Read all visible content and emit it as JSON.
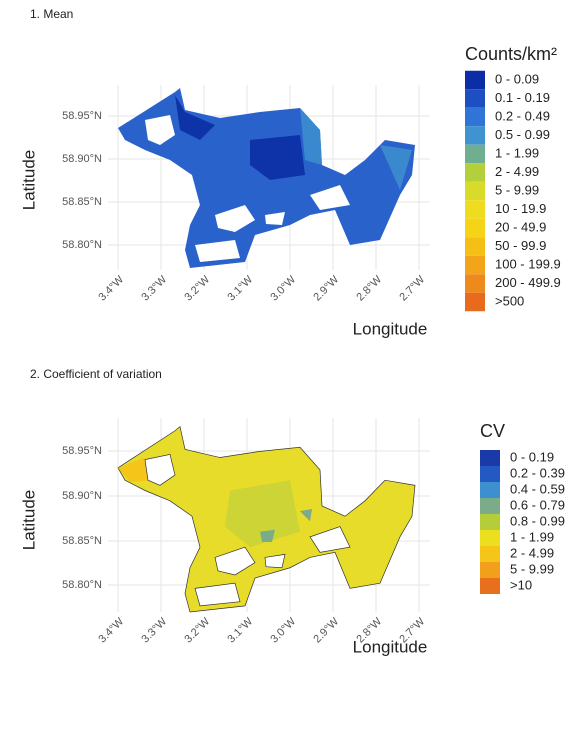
{
  "panels": [
    {
      "title": "1. Mean",
      "y_label": "Latitude",
      "x_label": "Longitude",
      "y_ticks": [
        "58.95°N",
        "58.90°N",
        "58.85°N",
        "58.80°N"
      ],
      "x_ticks": [
        "3.4°W",
        "3.3°W",
        "3.2°W",
        "3.1°W",
        "3.0°W",
        "2.9°W",
        "2.8°W",
        "2.7°W"
      ],
      "legend": {
        "title": "Counts/km²",
        "items": [
          {
            "label": "0 - 0.09",
            "color": "#0b2ea6"
          },
          {
            "label": "0.1 - 0.19",
            "color": "#1d4fc2"
          },
          {
            "label": "0.2 - 0.49",
            "color": "#2f74d6"
          },
          {
            "label": "0.5 - 0.99",
            "color": "#3f93cf"
          },
          {
            "label": "1 - 1.99",
            "color": "#6fae8e"
          },
          {
            "label": "2 - 4.99",
            "color": "#b4cf3c"
          },
          {
            "label": "5 - 9.99",
            "color": "#d8db2a"
          },
          {
            "label": "10 - 19.9",
            "color": "#eedd1e"
          },
          {
            "label": "20 - 49.9",
            "color": "#f5d316"
          },
          {
            "label": "50 - 99.9",
            "color": "#f5bf16"
          },
          {
            "label": "100 - 199.9",
            "color": "#f2a51a"
          },
          {
            "label": "200 - 499.9",
            "color": "#ee8a1c"
          },
          {
            "label": ">500",
            "color": "#e86a1c"
          }
        ]
      }
    },
    {
      "title": "2. Coefficient of variation",
      "y_label": "Latitude",
      "x_label": "Longitude",
      "y_ticks": [
        "58.95°N",
        "58.90°N",
        "58.85°N",
        "58.80°N"
      ],
      "x_ticks": [
        "3.4°W",
        "3.3°W",
        "3.2°W",
        "3.1°W",
        "3.0°W",
        "2.9°W",
        "2.8°W",
        "2.7°W"
      ],
      "legend": {
        "title": "CV",
        "items": [
          {
            "label": "0 - 0.19",
            "color": "#1a3aa8"
          },
          {
            "label": "0.2 - 0.39",
            "color": "#2458c2"
          },
          {
            "label": "0.4 - 0.59",
            "color": "#3e8fd0"
          },
          {
            "label": "0.6 - 0.79",
            "color": "#7aac8a"
          },
          {
            "label": "0.8 - 0.99",
            "color": "#b6cd3a"
          },
          {
            "label": "1 - 1.99",
            "color": "#ecdf20"
          },
          {
            "label": "2 - 4.99",
            "color": "#f5c51a"
          },
          {
            "label": "5 - 9.99",
            "color": "#f2a01c"
          },
          {
            "label": ">10",
            "color": "#e8701c"
          }
        ]
      }
    }
  ]
}
